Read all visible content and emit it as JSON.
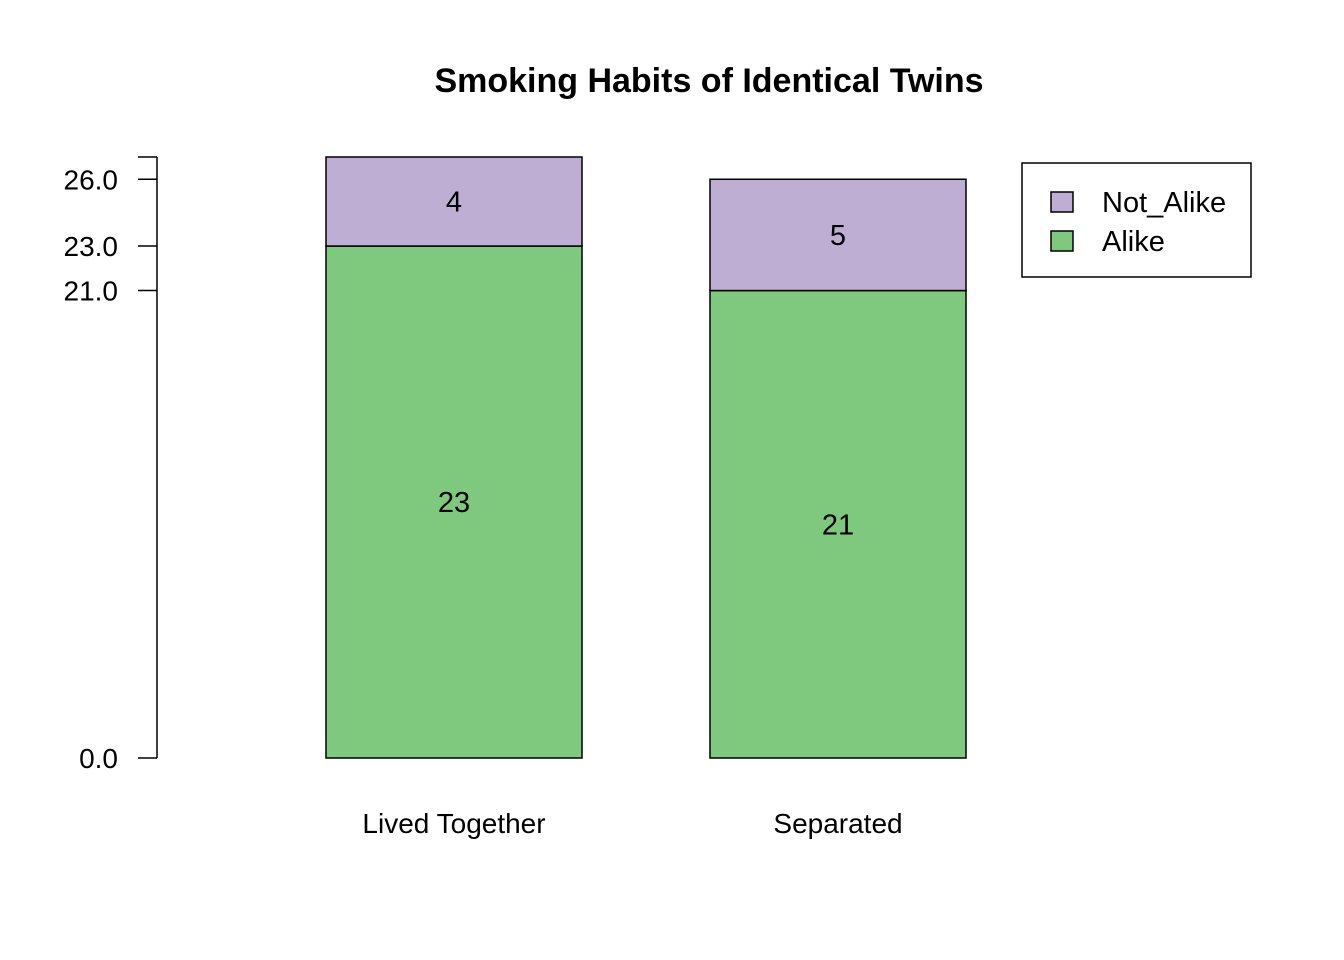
{
  "chart_data": {
    "type": "bar",
    "stacked": true,
    "title": "Smoking Habits of Identical Twins",
    "xlabel": "",
    "ylabel": "",
    "categories": [
      "Lived Together",
      "Separated"
    ],
    "series": [
      {
        "name": "Alike",
        "values": [
          23,
          21
        ],
        "color": "#7FC97F"
      },
      {
        "name": "Not_Alike",
        "values": [
          4,
          5
        ],
        "color": "#BEAED4"
      }
    ],
    "ylim": [
      0,
      27
    ],
    "yticks": [
      0,
      21,
      23,
      26
    ],
    "ytick_labels": [
      "0.0",
      "21.0",
      "23.0",
      "26.0"
    ],
    "legend": {
      "position": "top-right",
      "entries": [
        "Not_Alike",
        "Alike"
      ]
    },
    "grid": false
  }
}
